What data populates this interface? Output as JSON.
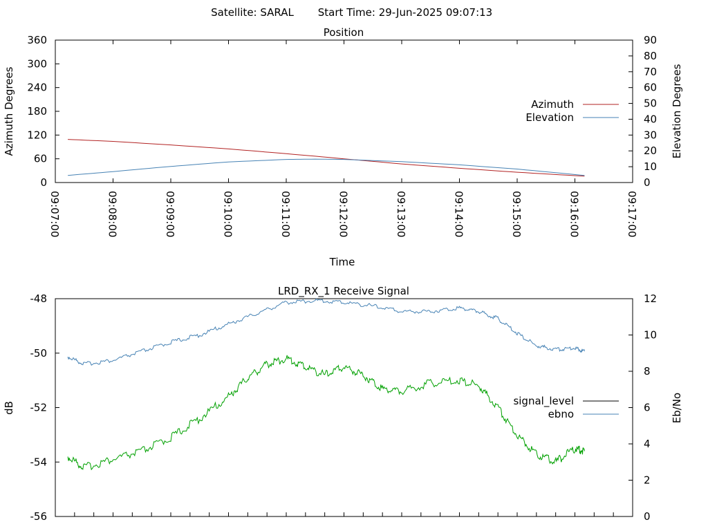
{
  "header": {
    "satellite": "Satellite: SARAL",
    "start_time": "Start Time: 29-Jun-2025 09:07:13"
  },
  "colors": {
    "azimuth": "#b22222",
    "elevation": "#4682b4",
    "signal_level": "#00a000",
    "signal_level_legend": "#000000",
    "ebno": "#4682b4"
  },
  "chart_data": [
    {
      "type": "line",
      "title": "Position",
      "xlabel": "Time",
      "ylabel": "Azimuth Degrees",
      "y2label": "Elevation Degrees",
      "x_ticks": [
        "09:07:00",
        "09:08:00",
        "09:09:00",
        "09:10:00",
        "09:11:00",
        "09:12:00",
        "09:13:00",
        "09:14:00",
        "09:15:00",
        "09:16:00",
        "09:17:00"
      ],
      "xlim": [
        "09:07:00",
        "09:17:00"
      ],
      "ylim": [
        0,
        360
      ],
      "yticks": [
        0,
        60,
        120,
        180,
        240,
        300,
        360
      ],
      "y2lim": [
        0,
        90
      ],
      "y2ticks": [
        0,
        10,
        20,
        30,
        40,
        50,
        60,
        70,
        80,
        90
      ],
      "grid": false,
      "legend": "right",
      "series": [
        {
          "name": "Azimuth",
          "axis": "y",
          "x": [
            "09:07:13",
            "09:08:00",
            "09:09:00",
            "09:10:00",
            "09:11:00",
            "09:12:00",
            "09:13:00",
            "09:14:00",
            "09:15:00",
            "09:16:10"
          ],
          "values": [
            109,
            104,
            95,
            85,
            73,
            60,
            47,
            36,
            26,
            16
          ]
        },
        {
          "name": "Elevation",
          "axis": "y2",
          "x": [
            "09:07:13",
            "09:08:00",
            "09:09:00",
            "09:10:00",
            "09:11:00",
            "09:11:30",
            "09:12:00",
            "09:13:00",
            "09:14:00",
            "09:15:00",
            "09:16:10"
          ],
          "values": [
            4.5,
            6.9,
            10.2,
            13.0,
            14.6,
            14.8,
            14.6,
            13.2,
            11.2,
            8.5,
            4.5
          ]
        }
      ]
    },
    {
      "type": "line",
      "title": "LRD_RX_1 Receive Signal",
      "ylabel": "dB",
      "y2label": "Eb/No",
      "ylim": [
        -56,
        -48
      ],
      "yticks": [
        -56,
        -54,
        -52,
        -50,
        -48
      ],
      "y2lim": [
        0,
        12
      ],
      "y2ticks": [
        0,
        2,
        4,
        6,
        8,
        10,
        12
      ],
      "xlim": [
        "09:07:00",
        "09:17:00"
      ],
      "grid": false,
      "legend": "right",
      "series": [
        {
          "name": "signal_level",
          "axis": "y",
          "x": [
            "09:07:13",
            "09:07:30",
            "09:08:00",
            "09:08:30",
            "09:09:00",
            "09:09:30",
            "09:10:00",
            "09:10:20",
            "09:10:40",
            "09:11:00",
            "09:11:20",
            "09:11:40",
            "09:12:00",
            "09:12:20",
            "09:12:40",
            "09:13:00",
            "09:13:30",
            "09:14:00",
            "09:14:20",
            "09:14:40",
            "09:15:00",
            "09:15:20",
            "09:15:40",
            "09:16:00",
            "09:16:10"
          ],
          "values": [
            -53.8,
            -54.2,
            -53.9,
            -53.6,
            -53.1,
            -52.4,
            -51.6,
            -50.9,
            -50.4,
            -50.2,
            -50.5,
            -50.8,
            -50.5,
            -50.8,
            -51.3,
            -51.4,
            -51.1,
            -51.0,
            -51.2,
            -52.0,
            -53.0,
            -53.7,
            -54.0,
            -53.5,
            -53.6
          ]
        },
        {
          "name": "ebno",
          "axis": "y2",
          "x": [
            "09:07:13",
            "09:07:30",
            "09:08:00",
            "09:08:30",
            "09:09:00",
            "09:09:30",
            "09:10:00",
            "09:10:30",
            "09:11:00",
            "09:11:30",
            "09:12:00",
            "09:12:30",
            "09:13:00",
            "09:13:30",
            "09:14:00",
            "09:14:20",
            "09:14:40",
            "09:15:00",
            "09:15:20",
            "09:15:40",
            "09:16:00",
            "09:16:10"
          ],
          "values": [
            8.8,
            8.4,
            8.6,
            9.1,
            9.6,
            10.0,
            10.6,
            11.2,
            11.8,
            11.9,
            11.8,
            11.6,
            11.3,
            11.3,
            11.5,
            11.3,
            10.9,
            10.1,
            9.4,
            9.2,
            9.3,
            9.1
          ]
        }
      ]
    }
  ]
}
